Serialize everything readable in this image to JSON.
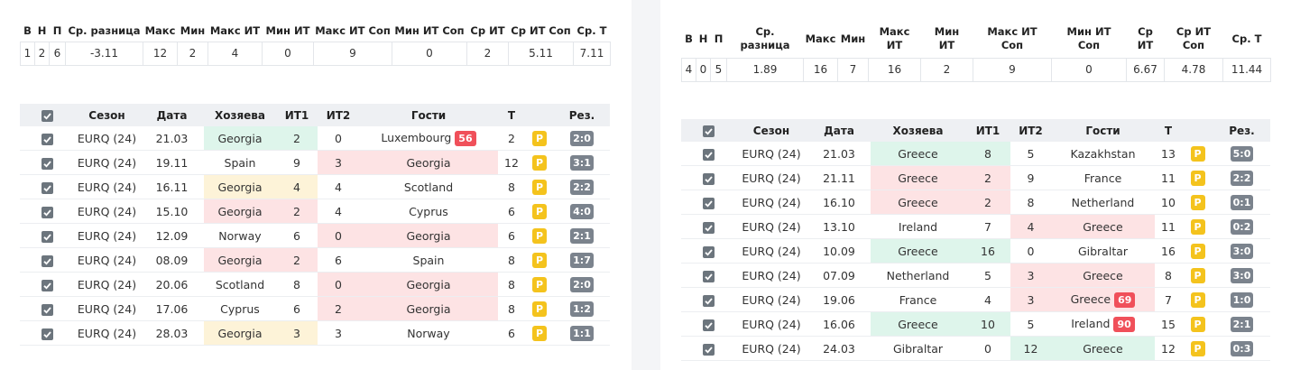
{
  "left": {
    "summary": {
      "headers": [
        "В",
        "Н",
        "П",
        "Ср. разница",
        "Макс",
        "Мин",
        "Макс ИТ",
        "Мин ИТ",
        "Макс ИТ Соп",
        "Мин ИТ Соп",
        "Ср ИТ",
        "Ср ИТ Соп",
        "Ср. Т"
      ],
      "values": [
        1,
        2,
        6,
        -3.11,
        12,
        2,
        4,
        0,
        9,
        0,
        2,
        5.11,
        7.11
      ]
    },
    "matches": {
      "headers": [
        "Сезон",
        "Дата",
        "Хозяева",
        "ИТ1",
        "ИТ2",
        "Гости",
        "Т",
        "Рез."
      ],
      "rows": [
        {
          "season": "EURQ (24)",
          "date": "21.03",
          "home": "Georgia",
          "it1": 2,
          "it2": 0,
          "away": "Luxembourg",
          "away_badge": 56,
          "total": 2,
          "mark": "P",
          "result": "2:0"
        },
        {
          "season": "EURQ (24)",
          "date": "19.11",
          "home": "Spain",
          "it1": 9,
          "it2": 3,
          "away": "Georgia",
          "total": 12,
          "mark": "P",
          "result": "3:1"
        },
        {
          "season": "EURQ (24)",
          "date": "16.11",
          "home": "Georgia",
          "it1": 4,
          "it2": 4,
          "away": "Scotland",
          "total": 8,
          "mark": "P",
          "result": "2:2"
        },
        {
          "season": "EURQ (24)",
          "date": "15.10",
          "home": "Georgia",
          "it1": 2,
          "it2": 4,
          "away": "Cyprus",
          "total": 6,
          "mark": "P",
          "result": "4:0"
        },
        {
          "season": "EURQ (24)",
          "date": "12.09",
          "home": "Norway",
          "it1": 6,
          "it2": 0,
          "away": "Georgia",
          "total": 6,
          "mark": "P",
          "result": "2:1"
        },
        {
          "season": "EURQ (24)",
          "date": "08.09",
          "home": "Georgia",
          "it1": 2,
          "it2": 6,
          "away": "Spain",
          "total": 8,
          "mark": "P",
          "result": "1:7"
        },
        {
          "season": "EURQ (24)",
          "date": "20.06",
          "home": "Scotland",
          "it1": 8,
          "it2": 0,
          "away": "Georgia",
          "total": 8,
          "mark": "P",
          "result": "2:0"
        },
        {
          "season": "EURQ (24)",
          "date": "17.06",
          "home": "Cyprus",
          "it1": 6,
          "it2": 2,
          "away": "Georgia",
          "total": 8,
          "mark": "P",
          "result": "1:2"
        },
        {
          "season": "EURQ (24)",
          "date": "28.03",
          "home": "Georgia",
          "it1": 3,
          "it2": 3,
          "away": "Norway",
          "total": 6,
          "mark": "P",
          "result": "1:1"
        }
      ]
    }
  },
  "right": {
    "summary": {
      "headers": [
        "В",
        "Н",
        "П",
        "Ср. разница",
        "Макс",
        "Мин",
        "Макс ИТ",
        "Мин ИТ",
        "Макс ИТ Соп",
        "Мин ИТ Соп",
        "Ср ИТ",
        "Ср ИТ Соп",
        "Ср. Т"
      ],
      "values": [
        4,
        0,
        5,
        1.89,
        16,
        7,
        16,
        2,
        9,
        0,
        6.67,
        4.78,
        11.44
      ]
    },
    "matches": {
      "headers": [
        "Сезон",
        "Дата",
        "Хозяева",
        "ИТ1",
        "ИТ2",
        "Гости",
        "Т",
        "Рез."
      ],
      "rows": [
        {
          "season": "EURQ (24)",
          "date": "21.03",
          "home": "Greece",
          "it1": 8,
          "it2": 5,
          "away": "Kazakhstan",
          "total": 13,
          "mark": "P",
          "result": "5:0"
        },
        {
          "season": "EURQ (24)",
          "date": "21.11",
          "home": "Greece",
          "it1": 2,
          "it2": 9,
          "away": "France",
          "total": 11,
          "mark": "P",
          "result": "2:2"
        },
        {
          "season": "EURQ (24)",
          "date": "16.10",
          "home": "Greece",
          "it1": 2,
          "it2": 8,
          "away": "Netherland",
          "total": 10,
          "mark": "P",
          "result": "0:1"
        },
        {
          "season": "EURQ (24)",
          "date": "13.10",
          "home": "Ireland",
          "it1": 7,
          "it2": 4,
          "away": "Greece",
          "total": 11,
          "mark": "P",
          "result": "0:2"
        },
        {
          "season": "EURQ (24)",
          "date": "10.09",
          "home": "Greece",
          "it1": 16,
          "it2": 0,
          "away": "Gibraltar",
          "total": 16,
          "mark": "P",
          "result": "3:0"
        },
        {
          "season": "EURQ (24)",
          "date": "07.09",
          "home": "Netherland",
          "it1": 5,
          "it2": 3,
          "away": "Greece",
          "total": 8,
          "mark": "P",
          "result": "3:0"
        },
        {
          "season": "EURQ (24)",
          "date": "19.06",
          "home": "France",
          "it1": 4,
          "it2": 3,
          "away": "Greece",
          "away_badge": 69,
          "total": 7,
          "mark": "P",
          "result": "1:0"
        },
        {
          "season": "EURQ (24)",
          "date": "16.06",
          "home": "Greece",
          "it1": 10,
          "it2": 5,
          "away": "Ireland",
          "away_badge": 90,
          "total": 15,
          "mark": "P",
          "result": "2:1"
        },
        {
          "season": "EURQ (24)",
          "date": "24.03",
          "home": "Gibraltar",
          "it1": 0,
          "it2": 12,
          "away": "Greece",
          "total": 12,
          "mark": "P",
          "result": "0:3"
        }
      ]
    }
  }
}
